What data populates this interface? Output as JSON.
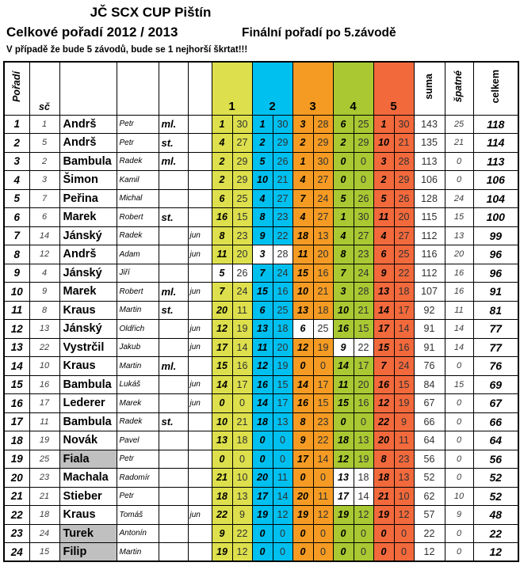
{
  "header": {
    "title": "JČ SCX CUP Pištín",
    "subtitle_left": "Celkové pořadí 2012 / 2013",
    "subtitle_right": "Finální pořadí po 5.závodě",
    "note": "V případě že bude 5 závodů, bude se 1 nejhorší škrtat!!!"
  },
  "table": {
    "columns": {
      "poradi": "Pořadí",
      "sc": "sč",
      "races": [
        "1",
        "2",
        "3",
        "4",
        "5"
      ],
      "suma": "suma",
      "spatne": "špatné",
      "celkem": "celkem"
    },
    "race_colors": [
      "#dde04c",
      "#00c0f0",
      "#f59b23",
      "#a9c832",
      "#f2693c"
    ],
    "gray_highlight": "#c0c0c0",
    "rows": [
      {
        "poradi": 1,
        "sc": 1,
        "surname": "Andrš",
        "first": "Petr",
        "cat": "ml.",
        "jun": "",
        "gray": false,
        "races": [
          [
            1,
            30,
            1
          ],
          [
            1,
            30,
            1
          ],
          [
            3,
            28,
            1
          ],
          [
            6,
            25,
            1
          ],
          [
            1,
            30,
            1
          ]
        ],
        "suma": 143,
        "spatne": 25,
        "celkem": 118
      },
      {
        "poradi": 2,
        "sc": 5,
        "surname": "Andrš",
        "first": "Petr",
        "cat": "st.",
        "jun": "",
        "gray": false,
        "races": [
          [
            4,
            27,
            1
          ],
          [
            2,
            29,
            1
          ],
          [
            2,
            29,
            1
          ],
          [
            2,
            29,
            1
          ],
          [
            10,
            21,
            1
          ]
        ],
        "suma": 135,
        "spatne": 21,
        "celkem": 114
      },
      {
        "poradi": 3,
        "sc": 2,
        "surname": "Bambula",
        "first": "Radek",
        "cat": "ml.",
        "jun": "",
        "gray": false,
        "races": [
          [
            2,
            29,
            1
          ],
          [
            5,
            26,
            1
          ],
          [
            1,
            30,
            1
          ],
          [
            0,
            0,
            1
          ],
          [
            3,
            28,
            1
          ]
        ],
        "suma": 113,
        "spatne": 0,
        "celkem": 113
      },
      {
        "poradi": 4,
        "sc": 3,
        "surname": "Šimon",
        "first": "Kamil",
        "cat": "",
        "jun": "",
        "gray": false,
        "races": [
          [
            2,
            29,
            1
          ],
          [
            10,
            21,
            1
          ],
          [
            4,
            27,
            1
          ],
          [
            0,
            0,
            1
          ],
          [
            2,
            29,
            1
          ]
        ],
        "suma": 106,
        "spatne": 0,
        "celkem": 106
      },
      {
        "poradi": 5,
        "sc": 7,
        "surname": "Peřina",
        "first": "Michal",
        "cat": "",
        "jun": "",
        "gray": false,
        "races": [
          [
            6,
            25,
            1
          ],
          [
            4,
            27,
            1
          ],
          [
            7,
            24,
            1
          ],
          [
            5,
            26,
            1
          ],
          [
            5,
            26,
            1
          ]
        ],
        "suma": 128,
        "spatne": 24,
        "celkem": 104
      },
      {
        "poradi": 6,
        "sc": 6,
        "surname": "Marek",
        "first": "Robert",
        "cat": "st.",
        "jun": "",
        "gray": false,
        "races": [
          [
            16,
            15,
            1
          ],
          [
            8,
            23,
            1
          ],
          [
            4,
            27,
            1
          ],
          [
            1,
            30,
            1
          ],
          [
            11,
            20,
            1
          ]
        ],
        "suma": 115,
        "spatne": 15,
        "celkem": 100
      },
      {
        "poradi": 7,
        "sc": 14,
        "surname": "Jánský",
        "first": "Radek",
        "cat": "",
        "jun": "jun",
        "gray": false,
        "races": [
          [
            8,
            23,
            1
          ],
          [
            9,
            22,
            1
          ],
          [
            18,
            13,
            1
          ],
          [
            4,
            27,
            1
          ],
          [
            4,
            27,
            1
          ]
        ],
        "suma": 112,
        "spatne": 13,
        "celkem": 99
      },
      {
        "poradi": 8,
        "sc": 12,
        "surname": "Andrš",
        "first": "Adam",
        "cat": "",
        "jun": "jun",
        "gray": false,
        "races": [
          [
            11,
            20,
            1
          ],
          [
            3,
            28,
            0
          ],
          [
            11,
            20,
            1
          ],
          [
            8,
            23,
            1
          ],
          [
            6,
            25,
            1
          ]
        ],
        "suma": 116,
        "spatne": 20,
        "celkem": 96
      },
      {
        "poradi": 9,
        "sc": 4,
        "surname": "Jánský",
        "first": "Jiří",
        "cat": "",
        "jun": "",
        "gray": false,
        "races": [
          [
            5,
            26,
            0
          ],
          [
            7,
            24,
            1
          ],
          [
            15,
            16,
            1
          ],
          [
            7,
            24,
            1
          ],
          [
            9,
            22,
            1
          ]
        ],
        "suma": 112,
        "spatne": 16,
        "celkem": 96
      },
      {
        "poradi": 10,
        "sc": 9,
        "surname": "Marek",
        "first": "Robert",
        "cat": "ml.",
        "jun": "jun",
        "gray": false,
        "races": [
          [
            7,
            24,
            1
          ],
          [
            15,
            16,
            1
          ],
          [
            10,
            21,
            1
          ],
          [
            3,
            28,
            1
          ],
          [
            13,
            18,
            1
          ]
        ],
        "suma": 107,
        "spatne": 16,
        "celkem": 91
      },
      {
        "poradi": 11,
        "sc": 8,
        "surname": "Kraus",
        "first": "Martin",
        "cat": "st.",
        "jun": "",
        "gray": false,
        "races": [
          [
            20,
            11,
            1
          ],
          [
            6,
            25,
            1
          ],
          [
            13,
            18,
            1
          ],
          [
            10,
            21,
            1
          ],
          [
            14,
            17,
            1
          ]
        ],
        "suma": 92,
        "spatne": 11,
        "celkem": 81
      },
      {
        "poradi": 12,
        "sc": 13,
        "surname": "Jánský",
        "first": "Oldřich",
        "cat": "",
        "jun": "jun",
        "gray": false,
        "races": [
          [
            12,
            19,
            1
          ],
          [
            13,
            18,
            1
          ],
          [
            6,
            25,
            0
          ],
          [
            16,
            15,
            1
          ],
          [
            17,
            14,
            1
          ]
        ],
        "suma": 91,
        "spatne": 14,
        "celkem": 77
      },
      {
        "poradi": 13,
        "sc": 22,
        "surname": "Vystrčil",
        "first": "Jakub",
        "cat": "",
        "jun": "jun",
        "gray": false,
        "races": [
          [
            17,
            14,
            1
          ],
          [
            11,
            20,
            1
          ],
          [
            12,
            19,
            1
          ],
          [
            9,
            22,
            0
          ],
          [
            15,
            16,
            1
          ]
        ],
        "suma": 91,
        "spatne": 14,
        "celkem": 77
      },
      {
        "poradi": 14,
        "sc": 10,
        "surname": "Kraus",
        "first": "Martin",
        "cat": "ml.",
        "jun": "",
        "gray": false,
        "races": [
          [
            15,
            16,
            1
          ],
          [
            12,
            19,
            1
          ],
          [
            0,
            0,
            1
          ],
          [
            14,
            17,
            1
          ],
          [
            7,
            24,
            1
          ]
        ],
        "suma": 76,
        "spatne": 0,
        "celkem": 76
      },
      {
        "poradi": 15,
        "sc": 16,
        "surname": "Bambula",
        "first": "Lukáš",
        "cat": "",
        "jun": "jun",
        "gray": false,
        "races": [
          [
            14,
            17,
            1
          ],
          [
            16,
            15,
            1
          ],
          [
            14,
            17,
            1
          ],
          [
            11,
            20,
            1
          ],
          [
            16,
            15,
            1
          ]
        ],
        "suma": 84,
        "spatne": 15,
        "celkem": 69
      },
      {
        "poradi": 16,
        "sc": 17,
        "surname": "Lederer",
        "first": "Marek",
        "cat": "",
        "jun": "jun",
        "gray": false,
        "races": [
          [
            0,
            0,
            1
          ],
          [
            14,
            17,
            1
          ],
          [
            16,
            15,
            1
          ],
          [
            15,
            16,
            1
          ],
          [
            12,
            19,
            1
          ]
        ],
        "suma": 67,
        "spatne": 0,
        "celkem": 67
      },
      {
        "poradi": 17,
        "sc": 11,
        "surname": "Bambula",
        "first": "Radek",
        "cat": "st.",
        "jun": "",
        "gray": false,
        "races": [
          [
            10,
            21,
            1
          ],
          [
            18,
            13,
            1
          ],
          [
            8,
            23,
            1
          ],
          [
            0,
            0,
            1
          ],
          [
            22,
            9,
            1
          ]
        ],
        "suma": 66,
        "spatne": 0,
        "celkem": 66
      },
      {
        "poradi": 18,
        "sc": 19,
        "surname": "Novák",
        "first": "Pavel",
        "cat": "",
        "jun": "",
        "gray": false,
        "races": [
          [
            13,
            18,
            1
          ],
          [
            0,
            0,
            1
          ],
          [
            9,
            22,
            1
          ],
          [
            18,
            13,
            1
          ],
          [
            20,
            11,
            1
          ]
        ],
        "suma": 64,
        "spatne": 0,
        "celkem": 64
      },
      {
        "poradi": 19,
        "sc": 25,
        "surname": "Fiala",
        "first": "Petr",
        "cat": "",
        "jun": "",
        "gray": true,
        "races": [
          [
            0,
            0,
            1
          ],
          [
            0,
            0,
            1
          ],
          [
            17,
            14,
            1
          ],
          [
            12,
            19,
            1
          ],
          [
            8,
            23,
            1
          ]
        ],
        "suma": 56,
        "spatne": 0,
        "celkem": 56
      },
      {
        "poradi": 20,
        "sc": 23,
        "surname": "Machala",
        "first": "Radomír",
        "cat": "",
        "jun": "",
        "gray": false,
        "races": [
          [
            21,
            10,
            1
          ],
          [
            20,
            11,
            1
          ],
          [
            0,
            0,
            1
          ],
          [
            13,
            18,
            0
          ],
          [
            18,
            13,
            1
          ]
        ],
        "suma": 52,
        "spatne": 0,
        "celkem": 52
      },
      {
        "poradi": 21,
        "sc": 21,
        "surname": "Stieber",
        "first": "Petr",
        "cat": "",
        "jun": "",
        "gray": false,
        "races": [
          [
            18,
            13,
            1
          ],
          [
            17,
            14,
            1
          ],
          [
            20,
            11,
            1
          ],
          [
            17,
            14,
            0
          ],
          [
            21,
            10,
            1
          ]
        ],
        "suma": 62,
        "spatne": 10,
        "celkem": 52
      },
      {
        "poradi": 22,
        "sc": 18,
        "surname": "Kraus",
        "first": "Tomáš",
        "cat": "",
        "jun": "jun",
        "gray": false,
        "races": [
          [
            22,
            9,
            1
          ],
          [
            19,
            12,
            1
          ],
          [
            19,
            12,
            1
          ],
          [
            19,
            12,
            1
          ],
          [
            19,
            12,
            1
          ]
        ],
        "suma": 57,
        "spatne": 9,
        "celkem": 48
      },
      {
        "poradi": 23,
        "sc": 24,
        "surname": "Turek",
        "first": "Antonín",
        "cat": "",
        "jun": "",
        "gray": true,
        "races": [
          [
            9,
            22,
            1
          ],
          [
            0,
            0,
            1
          ],
          [
            0,
            0,
            1
          ],
          [
            0,
            0,
            1
          ],
          [
            0,
            0,
            1
          ]
        ],
        "suma": 22,
        "spatne": 0,
        "celkem": 22
      },
      {
        "poradi": 24,
        "sc": 15,
        "surname": "Filip",
        "first": "Martin",
        "cat": "",
        "jun": "",
        "gray": true,
        "races": [
          [
            19,
            12,
            1
          ],
          [
            0,
            0,
            1
          ],
          [
            0,
            0,
            1
          ],
          [
            0,
            0,
            1
          ],
          [
            0,
            0,
            1
          ]
        ],
        "suma": 12,
        "spatne": 0,
        "celkem": 12
      }
    ]
  }
}
